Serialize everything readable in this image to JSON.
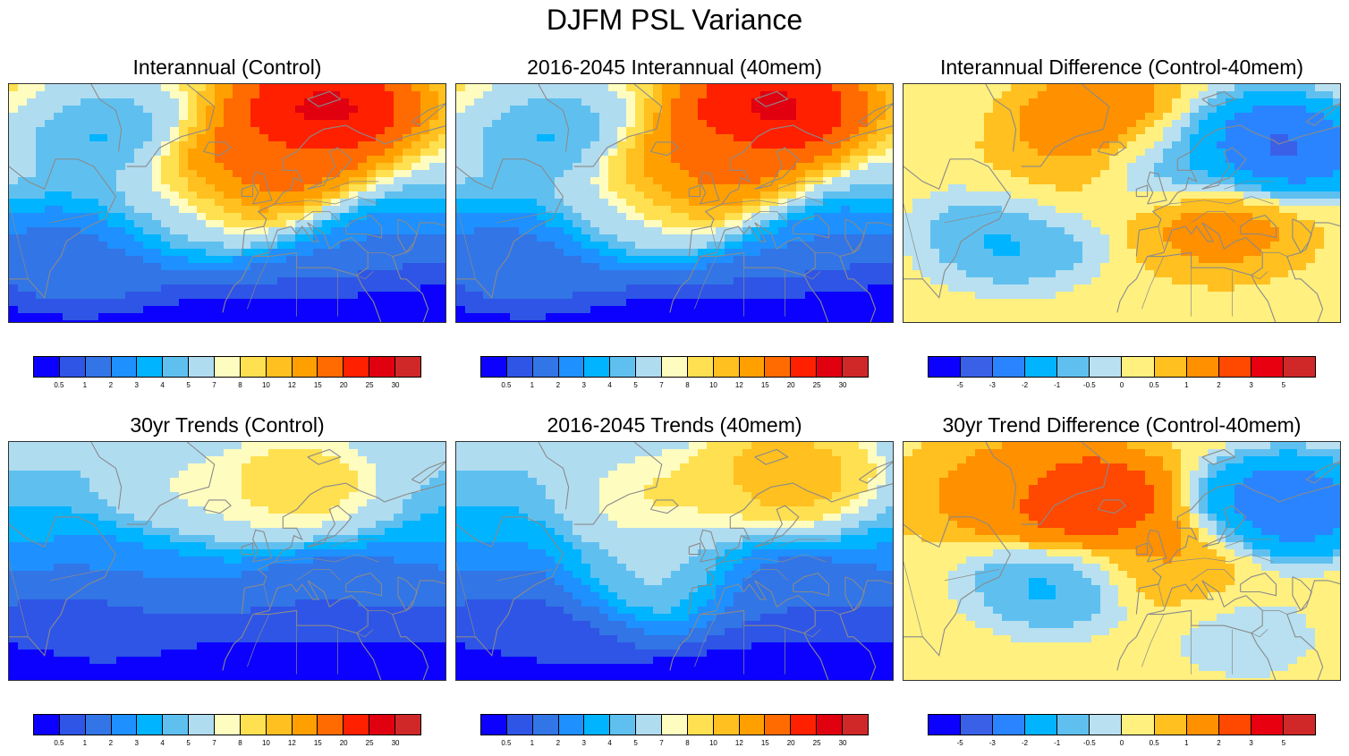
{
  "title": "DJFM PSL Variance",
  "colors": {
    "variance_scale": [
      "#0c00ff",
      "#2e55e6",
      "#3275e6",
      "#1e90ff",
      "#00b4ff",
      "#5fc0f0",
      "#b0dcf0",
      "#fffcc0",
      "#ffe050",
      "#ffc020",
      "#ffa000",
      "#ff6b00",
      "#ff2000",
      "#e00010",
      "#d02828"
    ],
    "difference_scale": [
      "#0c00ff",
      "#3a60e8",
      "#2a84ff",
      "#00b4ff",
      "#5fc0f0",
      "#b8e0f0",
      "#fff080",
      "#ffc020",
      "#ff9000",
      "#ff4800",
      "#e80010",
      "#d02828"
    ],
    "coastline": "#8a8a8a"
  },
  "chart_data": [
    {
      "type": "heatmap",
      "title": "Interannual (Control)",
      "scale": "variance",
      "levels": [
        "0.5",
        "1",
        "2",
        "3",
        "4",
        "5",
        "7",
        "8",
        "10",
        "12",
        "15",
        "20",
        "25",
        "30"
      ],
      "blobs": [
        {
          "lon": -70,
          "lat": 35,
          "value": 1.5
        },
        {
          "lon": -30,
          "lat": 48,
          "value": 5
        },
        {
          "lon": 20,
          "lat": 75,
          "value": 30
        },
        {
          "lon": 0,
          "lat": 60,
          "value": 22
        },
        {
          "lon": -10,
          "lat": 55,
          "value": 15
        },
        {
          "lon": 30,
          "lat": 40,
          "value": 2
        },
        {
          "lon": 40,
          "lat": 25,
          "value": 0.3
        },
        {
          "lon": -60,
          "lat": 70,
          "value": 3
        }
      ]
    },
    {
      "type": "heatmap",
      "title": "2016-2045 Interannual (40mem)",
      "scale": "variance",
      "levels": [
        "0.5",
        "1",
        "2",
        "3",
        "4",
        "5",
        "7",
        "8",
        "10",
        "12",
        "15",
        "20",
        "25",
        "30"
      ],
      "blobs": [
        {
          "lon": -70,
          "lat": 35,
          "value": 1.5
        },
        {
          "lon": -30,
          "lat": 48,
          "value": 6
        },
        {
          "lon": 20,
          "lat": 75,
          "value": 30
        },
        {
          "lon": 0,
          "lat": 60,
          "value": 20
        },
        {
          "lon": -10,
          "lat": 55,
          "value": 15
        },
        {
          "lon": 30,
          "lat": 40,
          "value": 2
        },
        {
          "lon": 40,
          "lat": 25,
          "value": 0.3
        },
        {
          "lon": -60,
          "lat": 70,
          "value": 3
        }
      ]
    },
    {
      "type": "heatmap",
      "title": "Interannual Difference (Control-40mem)",
      "scale": "difference",
      "levels": [
        "-5",
        "-3",
        "-2",
        "-1",
        "-0.5",
        "0",
        "0.5",
        "1",
        "2",
        "3",
        "5"
      ],
      "blobs": [
        {
          "lon": 40,
          "lat": 65,
          "value": -4
        },
        {
          "lon": 0,
          "lat": 63,
          "value": -1.5
        },
        {
          "lon": -55,
          "lat": 42,
          "value": -1.5
        },
        {
          "lon": -20,
          "lat": 70,
          "value": 2.5
        },
        {
          "lon": 20,
          "lat": 45,
          "value": 1.5
        },
        {
          "lon": -40,
          "lat": 55,
          "value": 0.8
        }
      ]
    },
    {
      "type": "heatmap",
      "title": "30yr Trends (Control)",
      "scale": "variance",
      "levels": [
        "0.5",
        "1",
        "2",
        "3",
        "4",
        "5",
        "7",
        "8",
        "10",
        "12",
        "15",
        "20",
        "25",
        "30"
      ],
      "blobs": [
        {
          "lon": 10,
          "lat": 70,
          "value": 10
        },
        {
          "lon": -25,
          "lat": 65,
          "value": 8
        },
        {
          "lon": -40,
          "lat": 50,
          "value": 2
        },
        {
          "lon": 20,
          "lat": 40,
          "value": 1
        },
        {
          "lon": 20,
          "lat": 22,
          "value": 0.3
        },
        {
          "lon": -60,
          "lat": 30,
          "value": 0.6
        }
      ]
    },
    {
      "type": "heatmap",
      "title": "2016-2045 Trends (40mem)",
      "scale": "variance",
      "levels": [
        "0.5",
        "1",
        "2",
        "3",
        "4",
        "5",
        "7",
        "8",
        "10",
        "12",
        "15",
        "20",
        "25",
        "30"
      ],
      "blobs": [
        {
          "lon": 25,
          "lat": 73,
          "value": 13
        },
        {
          "lon": -20,
          "lat": 66,
          "value": 9
        },
        {
          "lon": -20,
          "lat": 45,
          "value": 6
        },
        {
          "lon": 20,
          "lat": 40,
          "value": 1
        },
        {
          "lon": 20,
          "lat": 22,
          "value": 0.3
        },
        {
          "lon": -60,
          "lat": 30,
          "value": 0.6
        }
      ]
    },
    {
      "type": "heatmap",
      "title": "30yr Trend Difference (Control-40mem)",
      "scale": "difference",
      "levels": [
        "-5",
        "-3",
        "-2",
        "-1",
        "-0.5",
        "0",
        "0.5",
        "1",
        "2",
        "3",
        "5"
      ],
      "blobs": [
        {
          "lon": -30,
          "lat": 65,
          "value": 4
        },
        {
          "lon": -55,
          "lat": 68,
          "value": 1.5
        },
        {
          "lon": -40,
          "lat": 45,
          "value": -1.5
        },
        {
          "lon": 45,
          "lat": 65,
          "value": -3.5
        },
        {
          "lon": 0,
          "lat": 50,
          "value": 1.2
        },
        {
          "lon": 30,
          "lat": 30,
          "value": -0.3
        }
      ]
    }
  ]
}
